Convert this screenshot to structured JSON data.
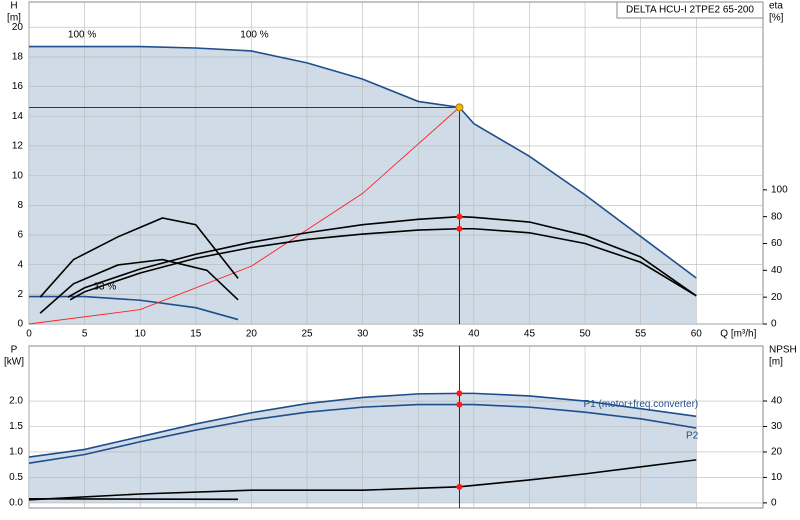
{
  "chart_data": [
    {
      "type": "line",
      "title": "DELTA HCU-I 2TPE2 65-200",
      "y_label": "H",
      "y_unit": "[m]",
      "y2_label": "eta",
      "y2_unit": "[%]",
      "x_label": "Q [m³/h]",
      "xlim": [
        0,
        66
      ],
      "ylim": [
        0,
        21.7
      ],
      "y2lim": [
        0,
        240
      ],
      "xticks": [
        0,
        5,
        10,
        15,
        20,
        25,
        30,
        35,
        40,
        45,
        50,
        55,
        60
      ],
      "yticks": [
        0,
        2,
        4,
        6,
        8,
        10,
        12,
        14,
        16,
        18,
        20
      ],
      "y2ticks": [
        0,
        20,
        40,
        60,
        80,
        100
      ],
      "grid": true,
      "operating_point": {
        "x": 38.7,
        "y": 14.6
      },
      "annotations": [
        {
          "text": "100 %",
          "x": 3.5,
          "y": 19.5
        },
        {
          "text": "100 %",
          "x": 19,
          "y": 19.5
        },
        {
          "text": "33 %",
          "x": 5.8,
          "y": 2.5
        }
      ],
      "series": [
        {
          "color": "#1f4e8c",
          "fill": "#cfdbe6",
          "x": [
            0,
            5,
            10,
            15,
            20,
            25,
            30,
            35,
            38.7,
            40,
            45,
            50,
            55,
            60
          ],
          "values": [
            18.7,
            18.7,
            18.7,
            18.6,
            18.4,
            17.6,
            16.5,
            15.0,
            14.6,
            13.5,
            11.3,
            8.7,
            5.9,
            3.1
          ]
        },
        {
          "color": "#1f4e8c",
          "x": [
            0,
            5,
            10,
            15,
            18.8
          ],
          "values": [
            1.85,
            1.85,
            1.6,
            1.1,
            0.3
          ]
        },
        {
          "color": "#ff2020",
          "x": [
            0,
            10,
            20,
            30,
            38.7
          ],
          "values": [
            0,
            0.97,
            3.9,
            8.8,
            14.6
          ]
        },
        {
          "color": "#000000",
          "axis": "y2",
          "x": [
            3.5,
            5,
            10,
            15,
            20,
            25,
            30,
            35,
            38.7,
            40,
            45,
            50,
            55,
            60
          ],
          "values": [
            20,
            27,
            41,
            52,
            61,
            68,
            74,
            78,
            80,
            79.5,
            76,
            66,
            50,
            21
          ]
        },
        {
          "color": "#000000",
          "axis": "y2",
          "x": [
            3.7,
            5,
            10,
            15,
            20,
            25,
            30,
            35,
            38.7,
            40,
            45,
            50,
            55,
            60
          ],
          "values": [
            18,
            24,
            38,
            49,
            57,
            63,
            67,
            70,
            71,
            71,
            68,
            60,
            46,
            21
          ]
        },
        {
          "color": "#000000",
          "axis": "y2",
          "x": [
            1,
            4,
            8,
            12,
            15,
            18.8
          ],
          "values": [
            20,
            48,
            65,
            79,
            74,
            34
          ]
        },
        {
          "color": "#000000",
          "axis": "y2",
          "x": [
            1,
            4,
            8,
            12,
            16,
            18.8
          ],
          "values": [
            8,
            30,
            44,
            48,
            40,
            18
          ]
        }
      ]
    },
    {
      "type": "line",
      "y_label": "P",
      "y_unit": "[kW]",
      "y2_label": "NPSH",
      "y2_unit": "[m]",
      "xlim": [
        0,
        66
      ],
      "ylim": [
        -0.1,
        3.08
      ],
      "y2lim": [
        -2,
        61.6
      ],
      "xticks": [
        0,
        5,
        10,
        15,
        20,
        25,
        30,
        35,
        40,
        45,
        50,
        55,
        60
      ],
      "yticks": [
        {
          "value": 0,
          "label": "0.0"
        },
        0.5,
        {
          "value": 1,
          "label": "1.0"
        },
        1.5,
        {
          "value": 2,
          "label": "2.0"
        }
      ],
      "y2ticks": [
        0,
        10,
        20,
        30,
        40
      ],
      "grid": true,
      "operating_point": {
        "x": 38.7
      },
      "series": [
        {
          "name": "P1 (motor+freq.converter)",
          "color": "#1f4e8c",
          "fill": "#cfdbe6",
          "x": [
            0,
            5,
            10,
            15,
            20,
            25,
            30,
            35,
            38.7,
            40,
            45,
            50,
            55,
            60
          ],
          "values": [
            0.9,
            1.05,
            1.3,
            1.55,
            1.77,
            1.95,
            2.07,
            2.14,
            2.15,
            2.15,
            2.1,
            2.0,
            1.85,
            1.7
          ]
        },
        {
          "name": "P2",
          "color": "#1f4e8c",
          "x": [
            0,
            5,
            10,
            15,
            20,
            25,
            30,
            35,
            38.7,
            40,
            45,
            50,
            55,
            60
          ],
          "values": [
            0.78,
            0.95,
            1.2,
            1.43,
            1.63,
            1.78,
            1.88,
            1.93,
            1.93,
            1.93,
            1.88,
            1.78,
            1.65,
            1.47
          ]
        },
        {
          "color": "#000000",
          "axis": "y2",
          "x": [
            0,
            10,
            20,
            30,
            38.7,
            45,
            50,
            60
          ],
          "values": [
            1.2,
            3.5,
            5,
            5,
            6.3,
            9,
            11.4,
            16.9
          ]
        },
        {
          "color": "#000000",
          "x": [
            0,
            18.8
          ],
          "values": [
            0.08,
            0.07
          ]
        }
      ]
    }
  ]
}
